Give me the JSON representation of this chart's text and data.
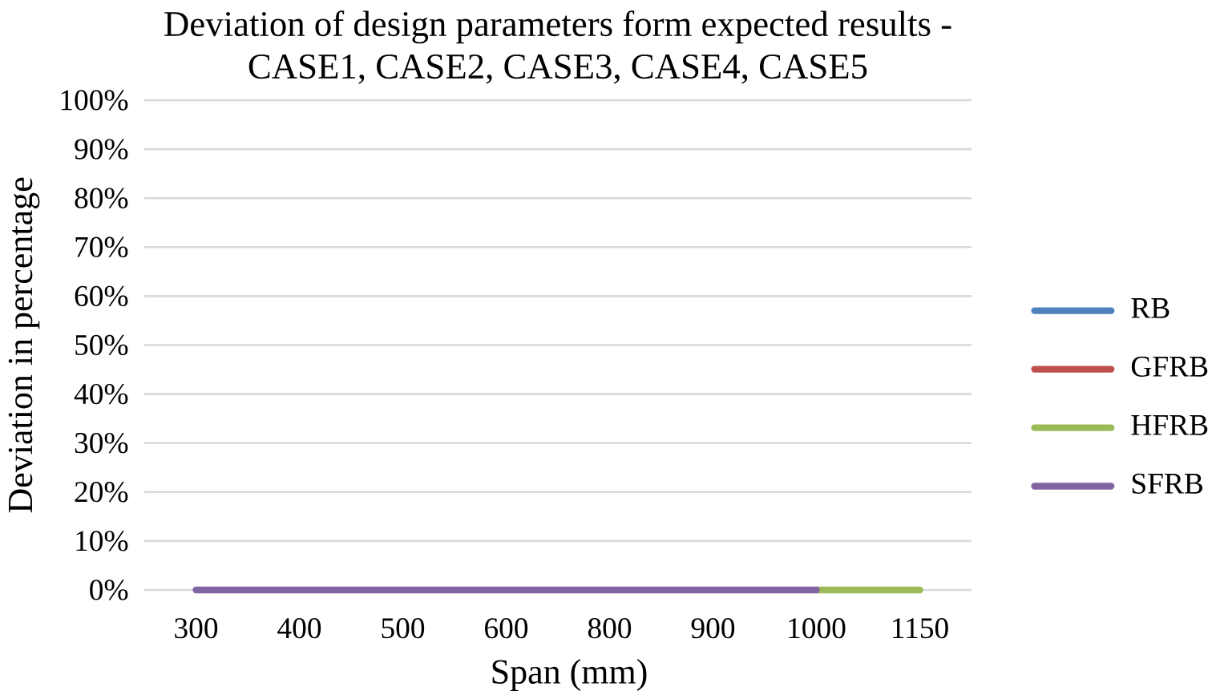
{
  "chart_data": {
    "type": "line",
    "title": "Deviation of design parameters form expected results - CASE1, CASE2, CASE3, CASE4, CASE5",
    "xlabel": "Span (mm)",
    "ylabel": "Deviation in percentage",
    "categories": [
      "300",
      "400",
      "500",
      "600",
      "800",
      "900",
      "1000",
      "1150"
    ],
    "series": [
      {
        "name": "RB",
        "color": "#4f81bd",
        "values": [
          null,
          null,
          null,
          null,
          null,
          null,
          null,
          null
        ]
      },
      {
        "name": "GFRB",
        "color": "#c0504d",
        "values": [
          null,
          null,
          null,
          null,
          null,
          null,
          null,
          null
        ]
      },
      {
        "name": "HFRB",
        "color": "#9bbb59",
        "values": [
          null,
          null,
          null,
          null,
          null,
          null,
          0,
          0
        ]
      },
      {
        "name": "SFRB",
        "color": "#8064a2",
        "values": [
          0,
          0,
          0,
          0,
          0,
          0,
          0,
          null
        ]
      }
    ],
    "ylim": [
      0,
      100
    ],
    "yticks": [
      {
        "value": 0,
        "label": "0%"
      },
      {
        "value": 10,
        "label": "10%"
      },
      {
        "value": 20,
        "label": "20%"
      },
      {
        "value": 30,
        "label": "30%"
      },
      {
        "value": 40,
        "label": "40%"
      },
      {
        "value": 50,
        "label": "50%"
      },
      {
        "value": 60,
        "label": "60%"
      },
      {
        "value": 70,
        "label": "70%"
      },
      {
        "value": 80,
        "label": "80%"
      },
      {
        "value": 90,
        "label": "90%"
      },
      {
        "value": 100,
        "label": "100%"
      }
    ],
    "grid": "y",
    "legend": "right",
    "marker": "none",
    "line_style": "solid"
  }
}
